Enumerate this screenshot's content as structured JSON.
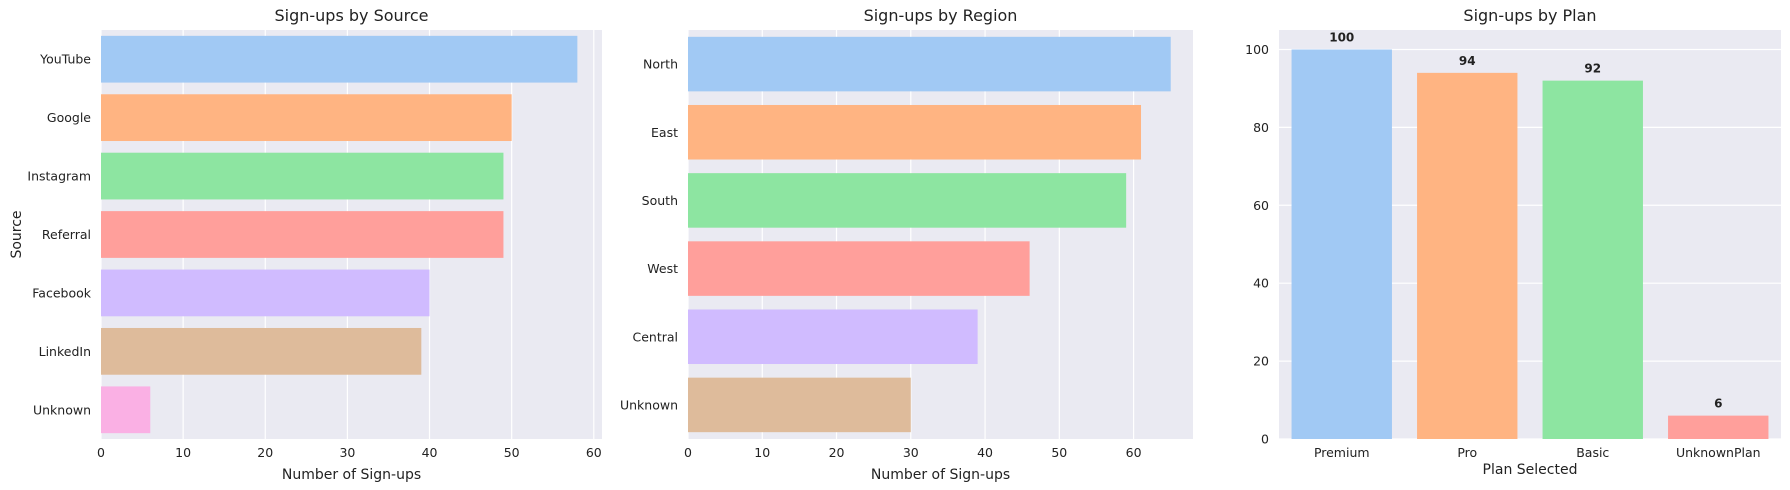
{
  "palette": [
    "#a1c9f4",
    "#ffb482",
    "#8de5a1",
    "#ff9f9b",
    "#d0bbff",
    "#debb9b",
    "#fab0e4"
  ],
  "plot_background": "#eaeaf2",
  "chart_data": [
    {
      "type": "bar",
      "orientation": "horizontal",
      "title": "Sign-ups by Source",
      "xlabel": "Number of Sign-ups",
      "ylabel": "Source",
      "categories": [
        "YouTube",
        "Google",
        "Instagram",
        "Referral",
        "Facebook",
        "LinkedIn",
        "Unknown"
      ],
      "values": [
        58,
        50,
        49,
        49,
        40,
        39,
        6
      ],
      "xlim": [
        0,
        61
      ],
      "xticks": [
        0,
        10,
        20,
        30,
        40,
        50,
        60
      ],
      "grid": true
    },
    {
      "type": "bar",
      "orientation": "horizontal",
      "title": "Sign-ups by Region",
      "xlabel": "Number of Sign-ups",
      "ylabel": "",
      "categories": [
        "North",
        "East",
        "South",
        "West",
        "Central",
        "Unknown"
      ],
      "values": [
        65,
        61,
        59,
        46,
        39,
        30
      ],
      "xlim": [
        0,
        68
      ],
      "xticks": [
        0,
        10,
        20,
        30,
        40,
        50,
        60
      ],
      "grid": true
    },
    {
      "type": "bar",
      "orientation": "vertical",
      "title": "Sign-ups by Plan",
      "xlabel": "Plan Selected",
      "ylabel": "",
      "categories": [
        "Premium",
        "Pro",
        "Basic",
        "UnknownPlan"
      ],
      "values": [
        100,
        94,
        92,
        6
      ],
      "value_labels": [
        "100",
        "94",
        "92",
        "6"
      ],
      "ylim": [
        0,
        105
      ],
      "yticks": [
        0,
        20,
        40,
        60,
        80,
        100
      ],
      "grid": true
    }
  ]
}
